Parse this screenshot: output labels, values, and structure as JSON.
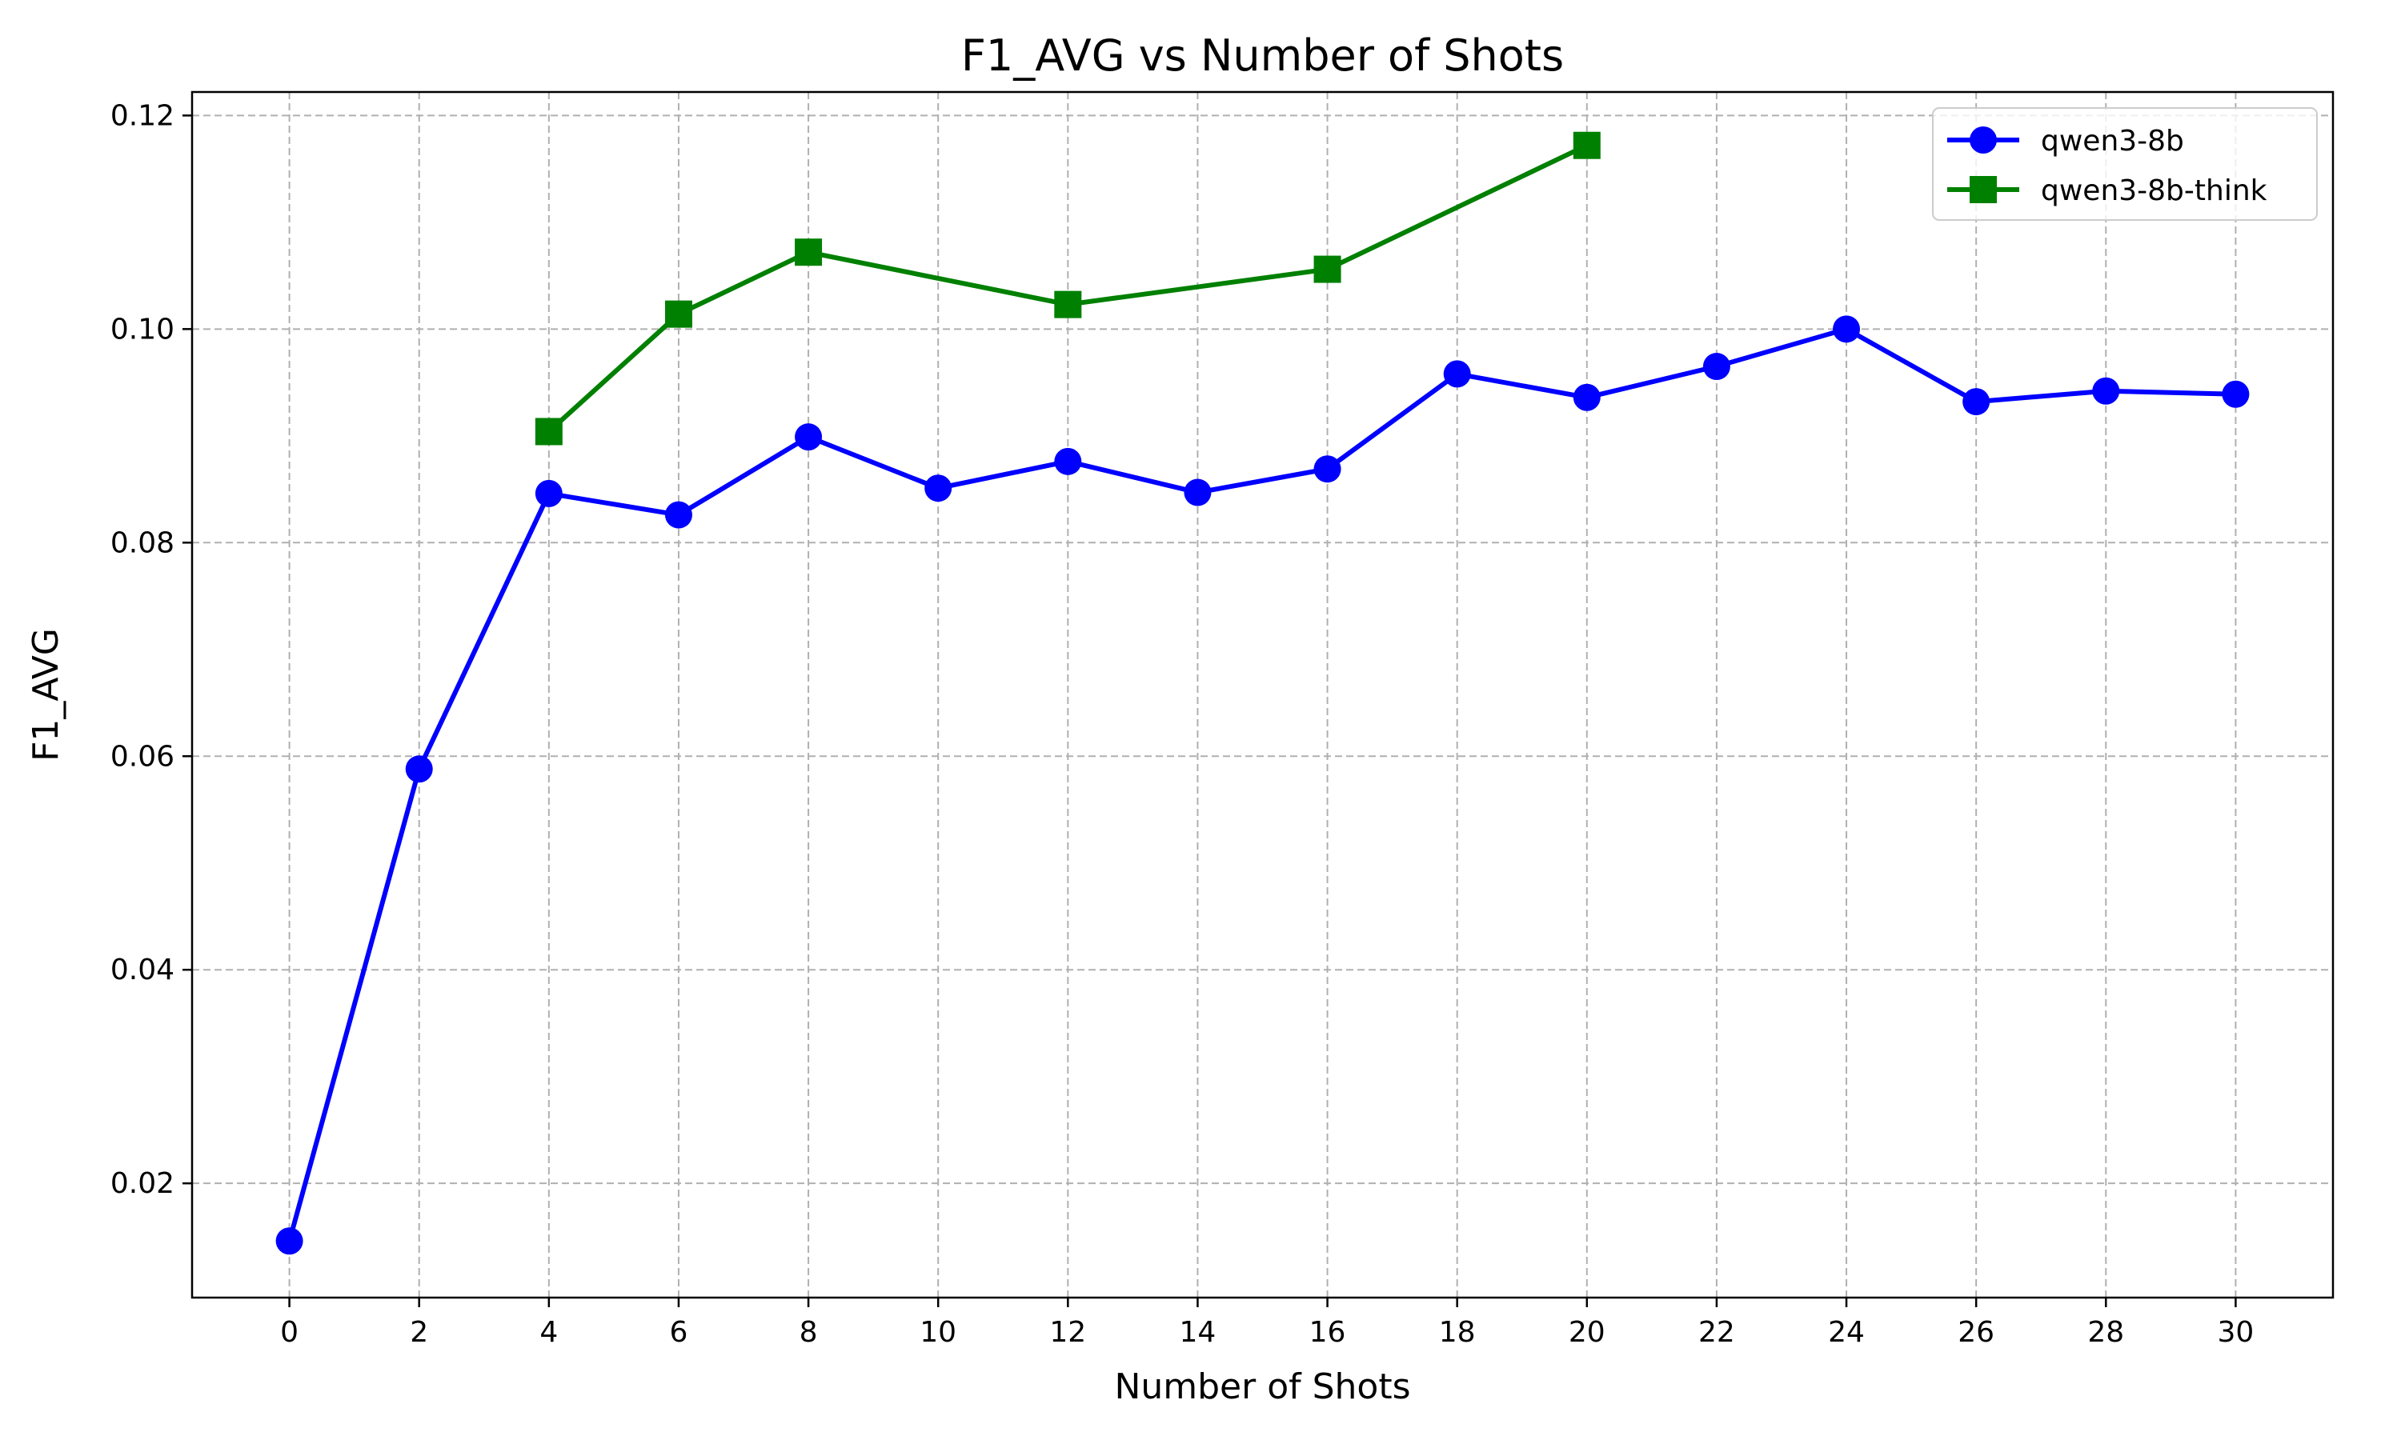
{
  "chart_data": {
    "type": "line",
    "title": "F1_AVG vs Number of Shots",
    "xlabel": "Number of Shots",
    "ylabel": "F1_AVG",
    "xlim": [
      -1.5,
      31.5
    ],
    "ylim": [
      0.0093,
      0.1222
    ],
    "xticks": [
      0,
      2,
      4,
      6,
      8,
      10,
      12,
      14,
      16,
      18,
      20,
      22,
      24,
      26,
      28,
      30
    ],
    "yticks": [
      0.02,
      0.04,
      0.06,
      0.08,
      0.1,
      0.12
    ],
    "ytick_labels": [
      "0.02",
      "0.04",
      "0.06",
      "0.08",
      "0.10",
      "0.12"
    ],
    "grid": true,
    "legend_position": "top-right",
    "series": [
      {
        "name": "qwen3-8b",
        "color": "#0000ff",
        "marker": "circle",
        "x": [
          0,
          2,
          4,
          6,
          8,
          10,
          12,
          14,
          16,
          18,
          20,
          22,
          24,
          26,
          28,
          30
        ],
        "y": [
          0.0146,
          0.0588,
          0.0846,
          0.0826,
          0.0899,
          0.0851,
          0.0876,
          0.0847,
          0.0869,
          0.0958,
          0.0936,
          0.0965,
          0.1,
          0.0932,
          0.0942,
          0.0939
        ]
      },
      {
        "name": "qwen3-8b-think",
        "color": "#008000",
        "marker": "square",
        "x": [
          4,
          6,
          8,
          12,
          16,
          20
        ],
        "y": [
          0.0904,
          0.1014,
          0.1072,
          0.1023,
          0.1056,
          0.1172
        ]
      }
    ]
  }
}
